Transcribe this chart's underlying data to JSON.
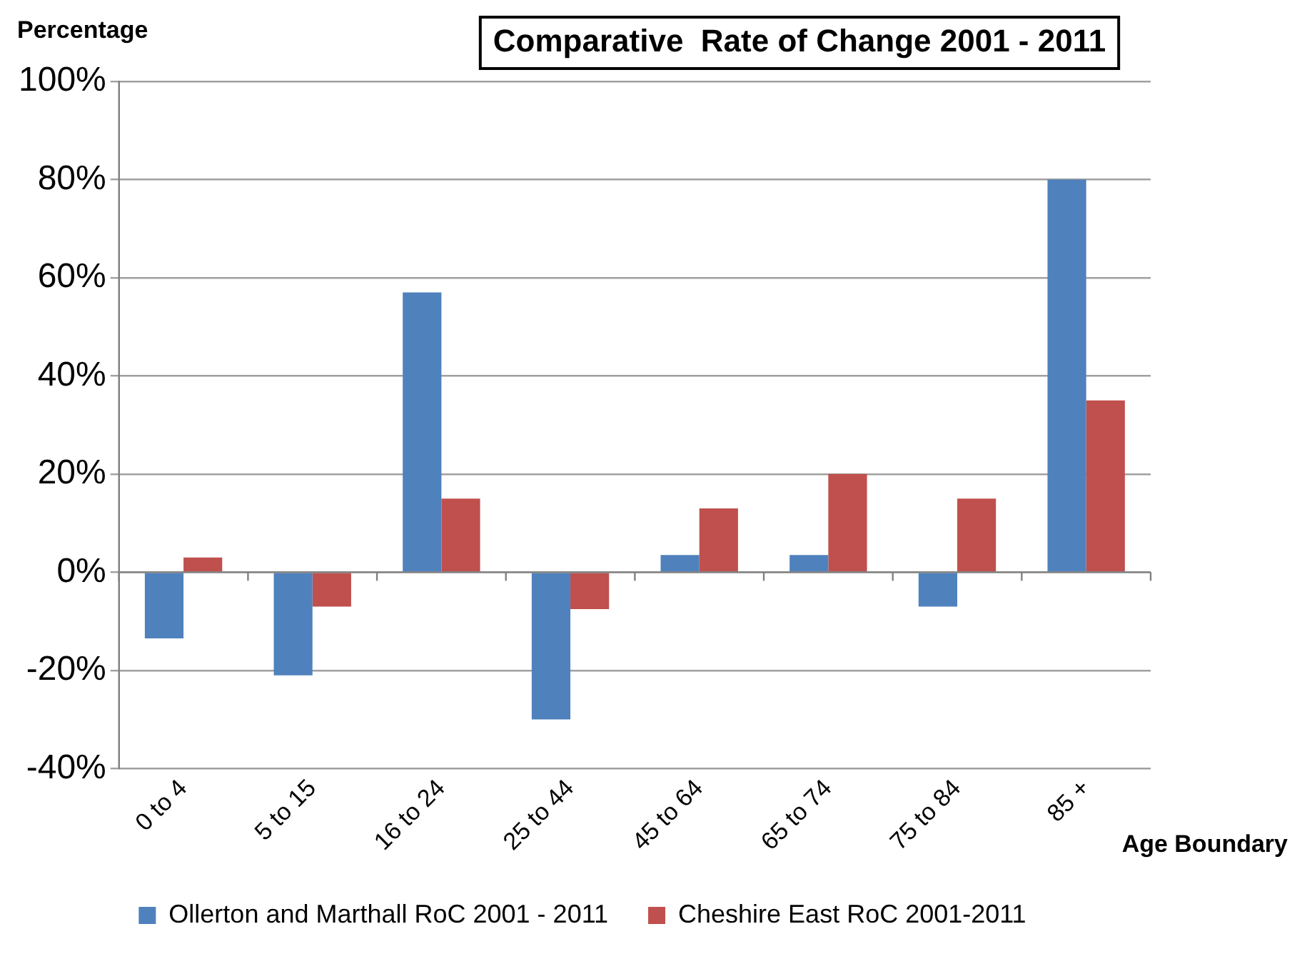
{
  "chart_data": {
    "type": "bar",
    "title": "Comparative  Rate of Change 2001 - 2011",
    "ylabel": "Percentage",
    "xlabel": "Age Boundary",
    "categories": [
      "0 to 4",
      "5 to 15",
      "16 to 24",
      "25 to 44",
      "45 to 64",
      "65 to 74",
      "75 to 84",
      "85 +"
    ],
    "series": [
      {
        "name": "Ollerton and Marthall RoC 2001 - 2011",
        "color": "#4f81bd",
        "values": [
          -13.5,
          -21,
          57,
          -30,
          3.5,
          3.5,
          -7,
          80
        ]
      },
      {
        "name": "Cheshire East RoC 2001-2011",
        "color": "#c0504d",
        "values": [
          3,
          -7,
          15,
          -7.5,
          13,
          20,
          15,
          35
        ]
      }
    ],
    "ylim": [
      -40,
      100
    ],
    "yticks": [
      {
        "value": -40,
        "label": "-40%"
      },
      {
        "value": -20,
        "label": "-20%"
      },
      {
        "value": 0,
        "label": "0%"
      },
      {
        "value": 20,
        "label": "20%"
      },
      {
        "value": 40,
        "label": "40%"
      },
      {
        "value": 60,
        "label": "60%"
      },
      {
        "value": 80,
        "label": "80%"
      },
      {
        "value": 100,
        "label": "100%"
      }
    ],
    "grid": "y",
    "legend": "bottom"
  }
}
